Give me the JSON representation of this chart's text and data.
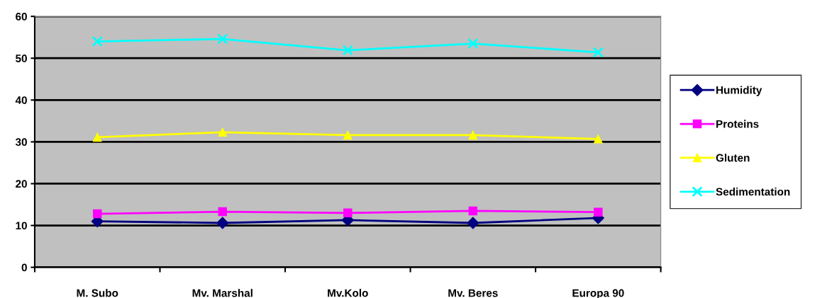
{
  "chart_data": {
    "type": "line",
    "categories": [
      "M. Subo",
      "Mv. Marshal",
      "Mv.Kolo",
      "Mv. Beres",
      "Europa 90"
    ],
    "series": [
      {
        "name": "Humidity",
        "color": "#000080",
        "marker": "diamond",
        "values": [
          11.0,
          10.6,
          11.3,
          10.6,
          11.8
        ]
      },
      {
        "name": "Proteins",
        "color": "#ff00ff",
        "marker": "square",
        "values": [
          12.8,
          13.3,
          13.0,
          13.5,
          13.2
        ]
      },
      {
        "name": "Gluten",
        "color": "#ffff00",
        "marker": "triangle",
        "values": [
          31.1,
          32.3,
          31.6,
          31.6,
          30.7
        ]
      },
      {
        "name": "Sedimentation",
        "color": "#00ffff",
        "marker": "cross",
        "values": [
          54.0,
          54.6,
          51.9,
          53.5,
          51.4
        ]
      }
    ],
    "ylim": [
      0,
      60
    ],
    "yticks": [
      0,
      10,
      20,
      30,
      40,
      50,
      60
    ],
    "grid": "y",
    "legend": "right",
    "line_style": "solid"
  }
}
